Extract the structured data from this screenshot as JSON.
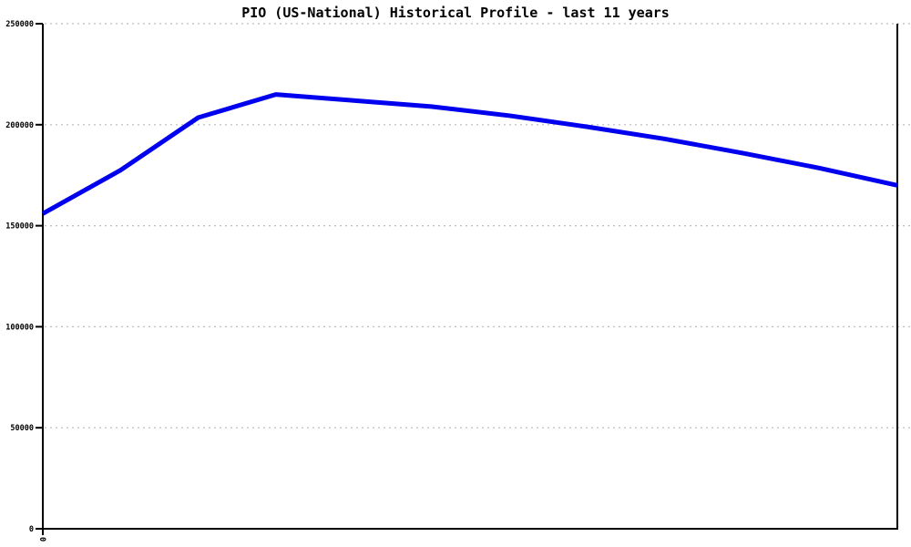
{
  "chart_data": {
    "type": "line",
    "title": "PIO (US-National) Historical Profile - last 11 years",
    "xlabel": "",
    "ylabel": "",
    "x": [
      0,
      1,
      2,
      3,
      4,
      5,
      6,
      7,
      8,
      9,
      10,
      11
    ],
    "values": [
      156000,
      177500,
      203500,
      215000,
      212000,
      209000,
      204500,
      199000,
      193000,
      186000,
      178500,
      170000
    ],
    "ylim": [
      0,
      250000
    ],
    "yticks": [
      0,
      50000,
      100000,
      150000,
      200000,
      250000
    ],
    "ytick_labels": [
      "0",
      "50000",
      "100000",
      "150000",
      "200000",
      "250000"
    ],
    "xtick_labels": [
      "0"
    ],
    "grid": "horizontal-dashed",
    "legend": "none",
    "colors": {
      "line": "#0000ee",
      "grid": "#bbbbbb",
      "axis": "#000000",
      "text": "#000000",
      "background": "#ffffff"
    }
  }
}
